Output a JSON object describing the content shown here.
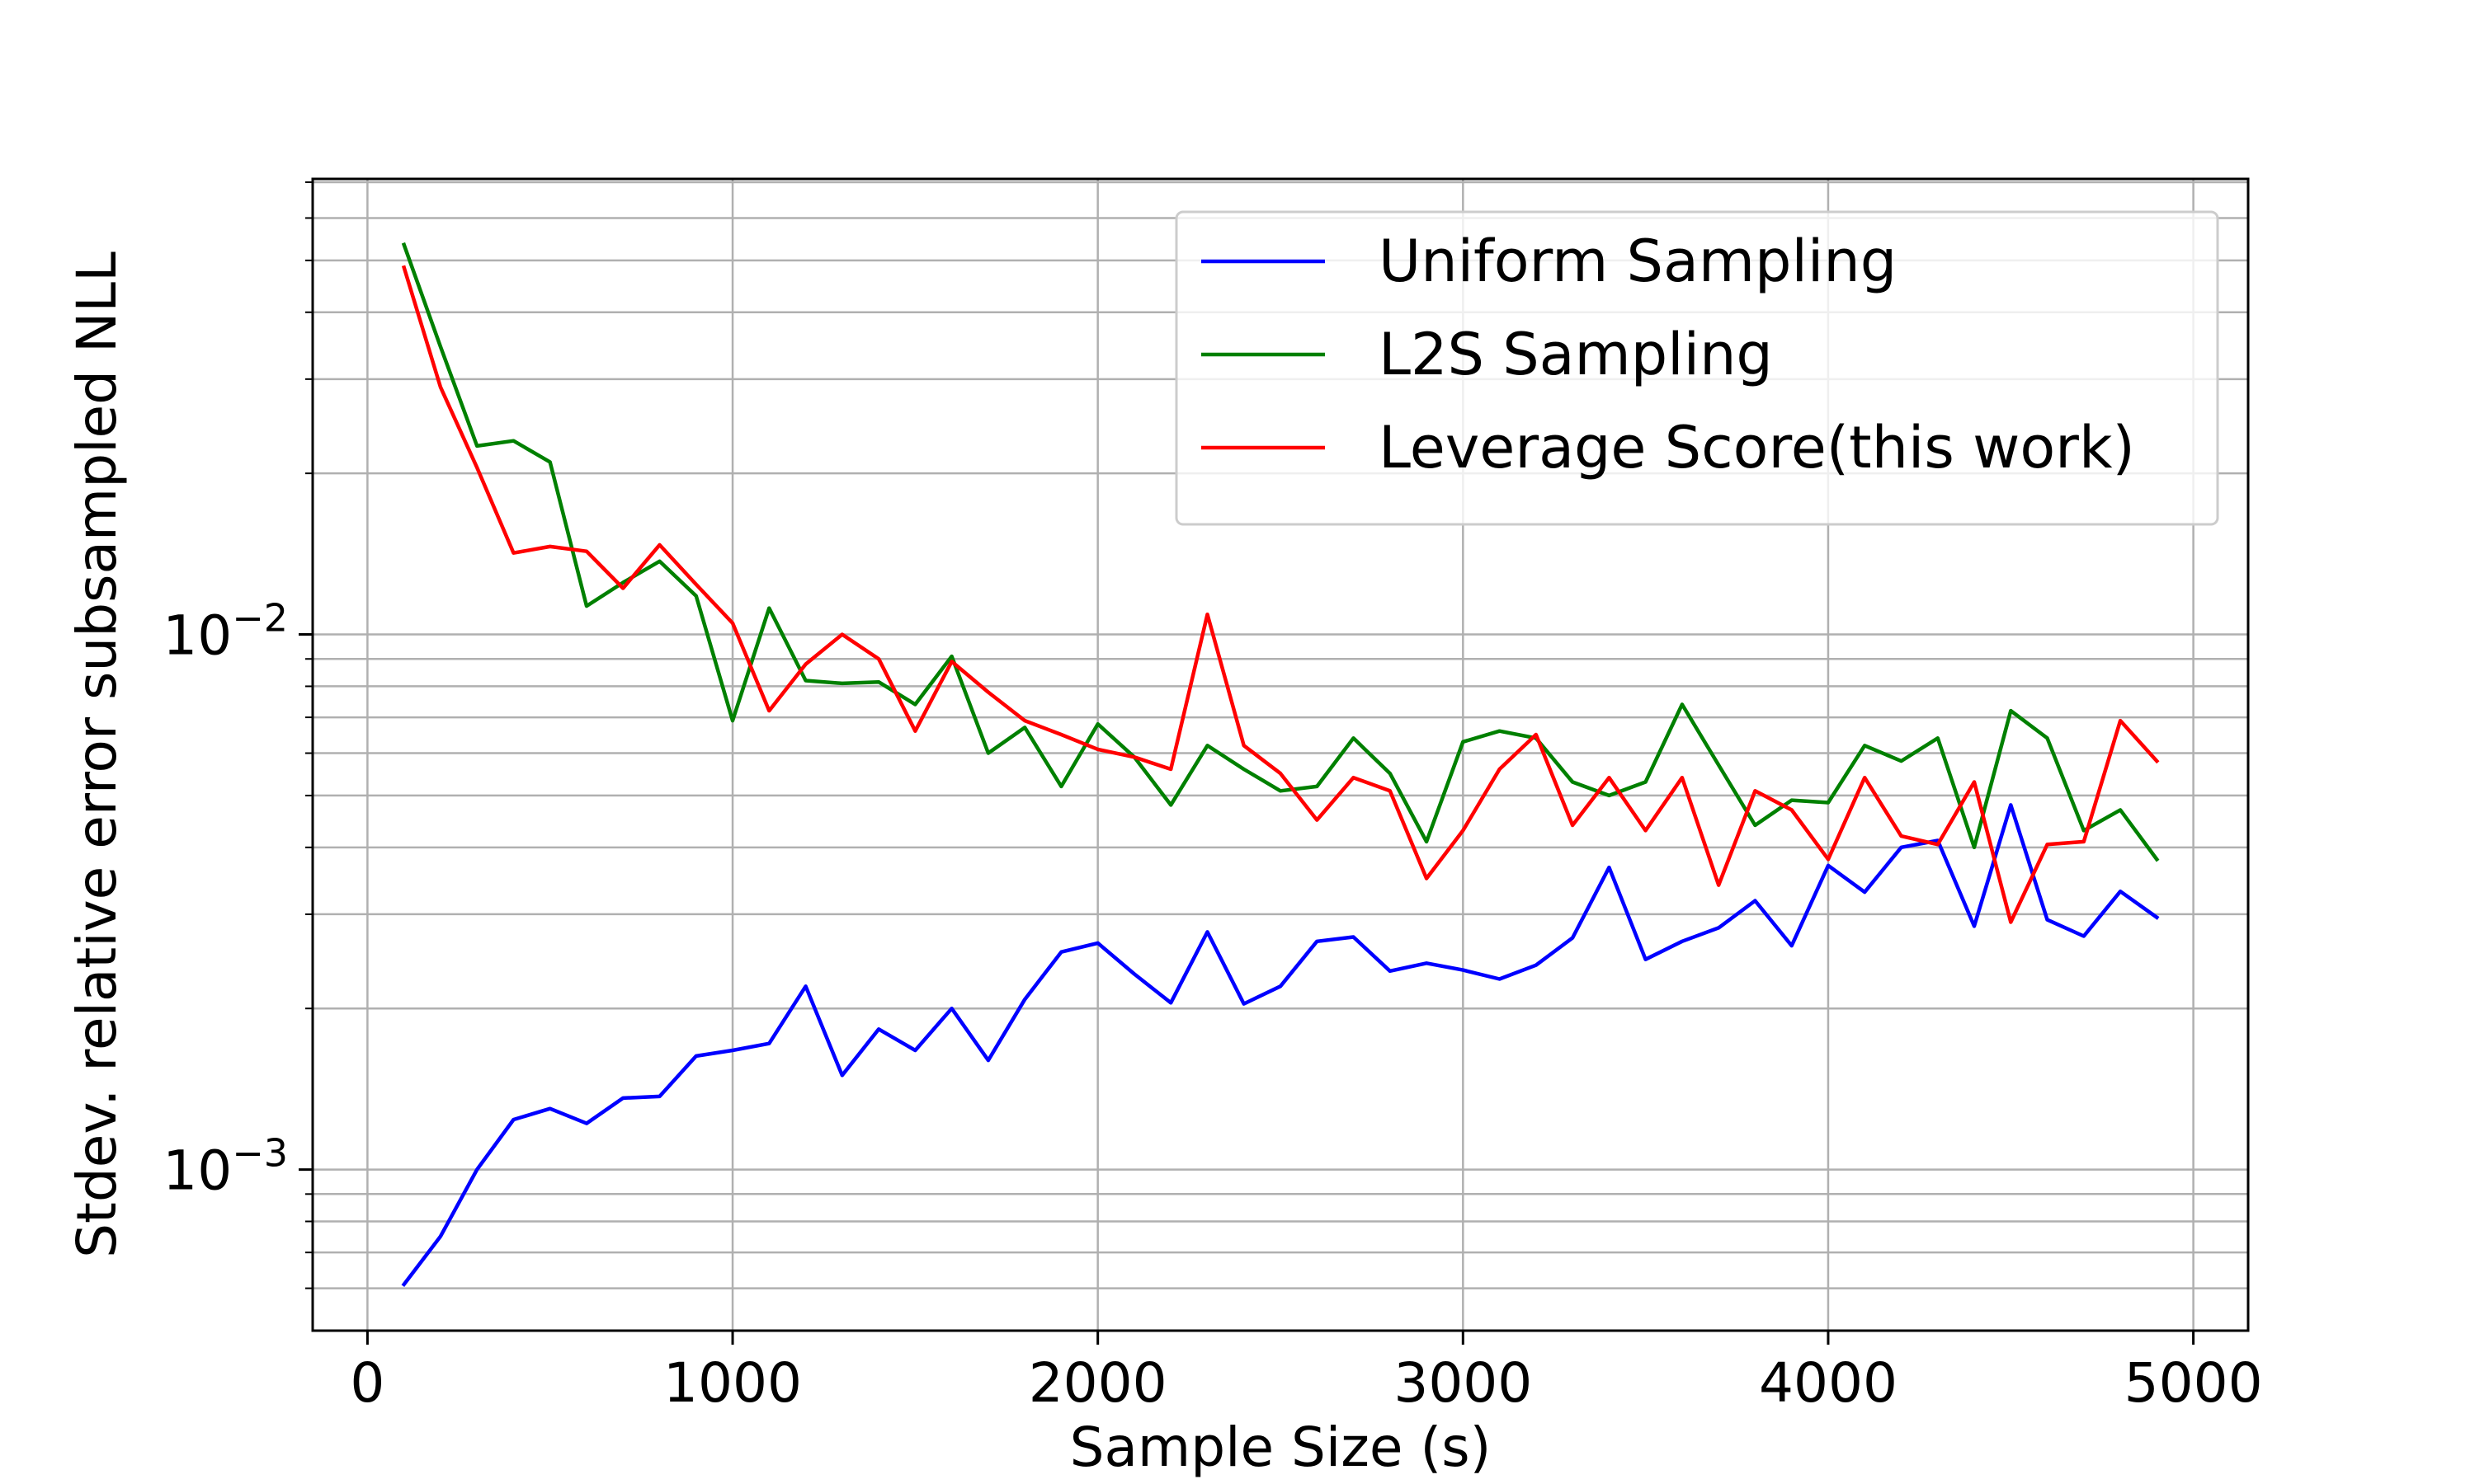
{
  "chart_data": {
    "type": "line",
    "title": "",
    "xlabel": "Sample Size (s)",
    "ylabel": "Stdev. relative error subsampled NLL",
    "xlim": [
      -150,
      5150
    ],
    "ylim": [
      0.0005,
      0.071
    ],
    "yscale": "log",
    "grid": true,
    "legend_position": "top-right",
    "x_ticks": [
      0,
      1000,
      2000,
      3000,
      4000,
      5000
    ],
    "x_tick_labels": [
      "0",
      "1000",
      "2000",
      "3000",
      "4000",
      "5000"
    ],
    "y_ticks": [
      0.001,
      0.01
    ],
    "y_tick_labels": [
      {
        "base": "10",
        "exp": "−3"
      },
      {
        "base": "10",
        "exp": "−2"
      }
    ],
    "x": [
      100,
      200,
      300,
      400,
      500,
      600,
      700,
      800,
      900,
      1000,
      1100,
      1200,
      1300,
      1400,
      1500,
      1600,
      1700,
      1800,
      1900,
      2000,
      2100,
      2200,
      2300,
      2400,
      2500,
      2600,
      2700,
      2800,
      2900,
      3000,
      3100,
      3200,
      3300,
      3400,
      3500,
      3600,
      3700,
      3800,
      3900,
      4000,
      4100,
      4200,
      4300,
      4400,
      4500,
      4600,
      4700,
      4800,
      4900
    ],
    "series": [
      {
        "name": "Uniform Sampling",
        "color": "#0000ff",
        "values": [
          0.00061,
          0.00075,
          0.001,
          0.00124,
          0.0013,
          0.00122,
          0.00136,
          0.00137,
          0.00163,
          0.00167,
          0.00172,
          0.0022,
          0.0015,
          0.00183,
          0.00167,
          0.002,
          0.0016,
          0.00208,
          0.00255,
          0.00265,
          0.00232,
          0.00205,
          0.00278,
          0.00204,
          0.0022,
          0.00267,
          0.00272,
          0.00235,
          0.00243,
          0.00236,
          0.00227,
          0.00241,
          0.00271,
          0.00367,
          0.00247,
          0.00267,
          0.00283,
          0.00318,
          0.00262,
          0.0037,
          0.0033,
          0.004,
          0.00412,
          0.00285,
          0.0048,
          0.00293,
          0.00273,
          0.00331,
          0.00296
        ]
      },
      {
        "name": "L2S Sampling",
        "color": "#008000",
        "values": [
          0.0535,
          0.0345,
          0.0225,
          0.023,
          0.021,
          0.0113,
          0.0125,
          0.0137,
          0.0118,
          0.0069,
          0.0112,
          0.0082,
          0.0081,
          0.00815,
          0.0074,
          0.0091,
          0.006,
          0.0067,
          0.0052,
          0.0068,
          0.0059,
          0.0048,
          0.0062,
          0.0056,
          0.0051,
          0.0052,
          0.0064,
          0.0055,
          0.0041,
          0.0063,
          0.0066,
          0.0064,
          0.0053,
          0.005,
          0.0053,
          0.0074,
          0.0057,
          0.0044,
          0.0049,
          0.00485,
          0.0062,
          0.0058,
          0.0064,
          0.004,
          0.0072,
          0.0064,
          0.0043,
          0.0047,
          0.0038
        ]
      },
      {
        "name": "Leverage Score(this work)",
        "color": "#ff0000",
        "values": [
          0.0485,
          0.029,
          0.0205,
          0.0142,
          0.0146,
          0.0143,
          0.0122,
          0.0147,
          0.0124,
          0.0105,
          0.0072,
          0.0088,
          0.01,
          0.009,
          0.0066,
          0.0089,
          0.0078,
          0.0069,
          0.0065,
          0.0061,
          0.0059,
          0.0056,
          0.0109,
          0.0062,
          0.0055,
          0.0045,
          0.0054,
          0.0051,
          0.0035,
          0.0043,
          0.0056,
          0.0065,
          0.0044,
          0.0054,
          0.0043,
          0.0054,
          0.0034,
          0.0051,
          0.0047,
          0.0038,
          0.0054,
          0.0042,
          0.00405,
          0.0053,
          0.0029,
          0.00405,
          0.0041,
          0.0069,
          0.0058
        ]
      }
    ]
  }
}
